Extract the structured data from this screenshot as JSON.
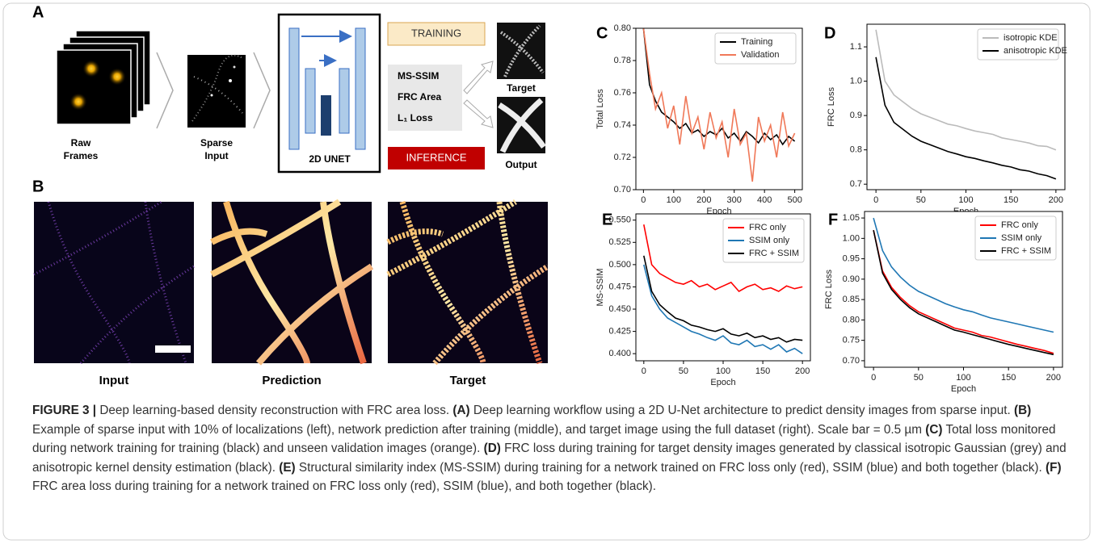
{
  "workflow": {
    "panel": "A",
    "raw_label": [
      "Raw",
      "Frames"
    ],
    "sparse_label": [
      "Sparse",
      "Input"
    ],
    "network": "2D UNET",
    "training": "TRAINING",
    "losses": [
      "MS-SSIM",
      "FRC Area",
      "L₁ Loss"
    ],
    "inference": "INFERENCE",
    "target": "Target",
    "output": "Output"
  },
  "images": {
    "panel": "B",
    "labels": [
      "Input",
      "Prediction",
      "Target"
    ]
  },
  "chart_data": [
    {
      "type": "line",
      "panel": "C",
      "xlabel": "Epoch",
      "ylabel": "Total Loss",
      "legend": "upper right",
      "x": [
        0,
        20,
        40,
        60,
        80,
        100,
        120,
        140,
        160,
        180,
        200,
        220,
        240,
        260,
        280,
        300,
        320,
        340,
        360,
        380,
        400,
        420,
        440,
        460,
        480,
        500
      ],
      "series": [
        {
          "name": "Training",
          "color": "#000000",
          "values": [
            0.8,
            0.765,
            0.755,
            0.748,
            0.745,
            0.742,
            0.738,
            0.741,
            0.735,
            0.737,
            0.733,
            0.736,
            0.734,
            0.738,
            0.732,
            0.735,
            0.73,
            0.736,
            0.733,
            0.729,
            0.735,
            0.731,
            0.734,
            0.728,
            0.733,
            0.73
          ]
        },
        {
          "name": "Validation",
          "color": "#f07858",
          "values": [
            0.8,
            0.772,
            0.75,
            0.76,
            0.738,
            0.752,
            0.728,
            0.758,
            0.735,
            0.745,
            0.725,
            0.748,
            0.732,
            0.742,
            0.72,
            0.75,
            0.728,
            0.735,
            0.705,
            0.745,
            0.73,
            0.74,
            0.72,
            0.748,
            0.727,
            0.735
          ]
        }
      ],
      "xlim": [
        -25,
        525
      ],
      "xticks": [
        0,
        100,
        200,
        300,
        400,
        500
      ],
      "ylim": [
        0.7,
        0.8
      ],
      "yticks": [
        {
          "value": 0.7,
          "label": "0.70"
        },
        0.72,
        0.74,
        0.76,
        0.78,
        {
          "value": 0.8,
          "label": "0.80"
        }
      ]
    },
    {
      "type": "line",
      "panel": "D",
      "xlabel": "Epoch",
      "ylabel": "FRC Loss",
      "legend": "upper right",
      "x": [
        0,
        10,
        20,
        30,
        40,
        50,
        60,
        70,
        80,
        90,
        100,
        110,
        120,
        130,
        140,
        150,
        160,
        170,
        180,
        190,
        200
      ],
      "series": [
        {
          "name": "isotropic KDE",
          "color": "#bbbbbb",
          "values": [
            1.15,
            1.0,
            0.96,
            0.94,
            0.92,
            0.905,
            0.895,
            0.885,
            0.875,
            0.87,
            0.862,
            0.855,
            0.85,
            0.845,
            0.835,
            0.83,
            0.825,
            0.82,
            0.812,
            0.81,
            0.8
          ]
        },
        {
          "name": "anisotropic KDE",
          "color": "#000000",
          "values": [
            1.07,
            0.93,
            0.88,
            0.86,
            0.84,
            0.825,
            0.815,
            0.805,
            0.795,
            0.788,
            0.78,
            0.775,
            0.768,
            0.762,
            0.755,
            0.75,
            0.742,
            0.738,
            0.73,
            0.725,
            0.715
          ]
        }
      ],
      "xlim": [
        -10,
        210
      ],
      "xticks": [
        0,
        50,
        100,
        150,
        200
      ],
      "ylim": [
        0.684,
        1.166
      ],
      "yticks": [
        0.7,
        0.8,
        0.9,
        {
          "value": 1.0,
          "label": "1.0"
        },
        1.1
      ]
    },
    {
      "type": "line",
      "panel": "E",
      "xlabel": "Epoch",
      "ylabel": "MS-SSIM",
      "legend": "upper right",
      "x": [
        0,
        10,
        20,
        30,
        40,
        50,
        60,
        70,
        80,
        90,
        100,
        110,
        120,
        130,
        140,
        150,
        160,
        170,
        180,
        190,
        200
      ],
      "series": [
        {
          "name": "FRC only",
          "color": "#ff0000",
          "values": [
            0.545,
            0.5,
            0.49,
            0.485,
            0.48,
            0.478,
            0.482,
            0.475,
            0.478,
            0.472,
            0.476,
            0.48,
            0.47,
            0.475,
            0.478,
            0.472,
            0.474,
            0.47,
            0.476,
            0.473,
            0.475
          ]
        },
        {
          "name": "SSIM only",
          "color": "#1f77b4",
          "values": [
            0.5,
            0.465,
            0.45,
            0.44,
            0.435,
            0.43,
            0.425,
            0.422,
            0.418,
            0.415,
            0.42,
            0.412,
            0.41,
            0.415,
            0.408,
            0.41,
            0.405,
            0.41,
            0.402,
            0.406,
            0.4
          ]
        },
        {
          "name": "FRC + SSIM",
          "color": "#000000",
          "values": [
            0.51,
            0.47,
            0.455,
            0.447,
            0.44,
            0.437,
            0.432,
            0.43,
            0.427,
            0.425,
            0.428,
            0.422,
            0.42,
            0.423,
            0.418,
            0.42,
            0.416,
            0.418,
            0.413,
            0.416,
            0.415
          ]
        }
      ],
      "xlim": [
        -10,
        210
      ],
      "xticks": [
        0,
        50,
        100,
        150,
        200
      ],
      "ylim": [
        0.392,
        0.557
      ],
      "yticks": [
        {
          "value": 0.4,
          "label": "0.400"
        },
        0.425,
        {
          "value": 0.45,
          "label": "0.450"
        },
        0.475,
        {
          "value": 0.5,
          "label": "0.500"
        },
        0.525,
        {
          "value": 0.55,
          "label": "0.550"
        }
      ]
    },
    {
      "type": "line",
      "panel": "F",
      "xlabel": "Epoch",
      "ylabel": "FRC Loss",
      "legend": "upper right",
      "x": [
        0,
        10,
        20,
        30,
        40,
        50,
        60,
        70,
        80,
        90,
        100,
        110,
        120,
        130,
        140,
        150,
        160,
        170,
        180,
        190,
        200
      ],
      "series": [
        {
          "name": "FRC only",
          "color": "#ff0000",
          "values": [
            1.02,
            0.92,
            0.88,
            0.855,
            0.835,
            0.82,
            0.81,
            0.8,
            0.79,
            0.78,
            0.775,
            0.77,
            0.762,
            0.758,
            0.752,
            0.746,
            0.74,
            0.735,
            0.73,
            0.725,
            0.718
          ]
        },
        {
          "name": "SSIM only",
          "color": "#1f77b4",
          "values": [
            1.05,
            0.97,
            0.93,
            0.905,
            0.885,
            0.87,
            0.86,
            0.85,
            0.84,
            0.832,
            0.825,
            0.82,
            0.812,
            0.805,
            0.8,
            0.795,
            0.79,
            0.785,
            0.78,
            0.775,
            0.77
          ]
        },
        {
          "name": "FRC + SSIM",
          "color": "#000000",
          "values": [
            1.02,
            0.915,
            0.875,
            0.85,
            0.83,
            0.815,
            0.805,
            0.795,
            0.785,
            0.775,
            0.77,
            0.764,
            0.758,
            0.752,
            0.746,
            0.74,
            0.735,
            0.73,
            0.725,
            0.72,
            0.715
          ]
        }
      ],
      "xlim": [
        -10,
        210
      ],
      "xticks": [
        0,
        50,
        100,
        150,
        200
      ],
      "ylim": [
        0.684,
        1.066
      ],
      "yticks": [
        {
          "value": 0.7,
          "label": "0.70"
        },
        0.75,
        {
          "value": 0.8,
          "label": "0.80"
        },
        0.85,
        {
          "value": 0.9,
          "label": "0.90"
        },
        0.95,
        {
          "value": 1.0,
          "label": "1.00"
        },
        1.05
      ]
    }
  ],
  "caption": {
    "label": "FIGURE 3 |",
    "title": "Deep learning-based density reconstruction with FRC area loss.",
    "parts": [
      {
        "tag": "(A)",
        "text": "Deep learning workflow using a 2D U-Net architecture to predict density images from sparse input."
      },
      {
        "tag": "(B)",
        "text": "Example of sparse input with 10% of localizations (left), network prediction after training (middle), and target image using the full dataset (right). Scale bar = 0.5 µm"
      },
      {
        "tag": "(C)",
        "text": "Total loss monitored during network training for training (black) and unseen validation images (orange)."
      },
      {
        "tag": "(D)",
        "text": "FRC loss during training for target density images generated by classical isotropic Gaussian (grey) and anisotropic kernel density estimation (black)."
      },
      {
        "tag": "(E)",
        "text": "Structural similarity index (MS-SSIM) during training for a network trained on FRC loss only (red), SSIM (blue) and both together (black)."
      },
      {
        "tag": "(F)",
        "text": "FRC area loss during training for a network trained on FRC loss only (red), SSIM (blue), and both together (black)."
      }
    ]
  }
}
